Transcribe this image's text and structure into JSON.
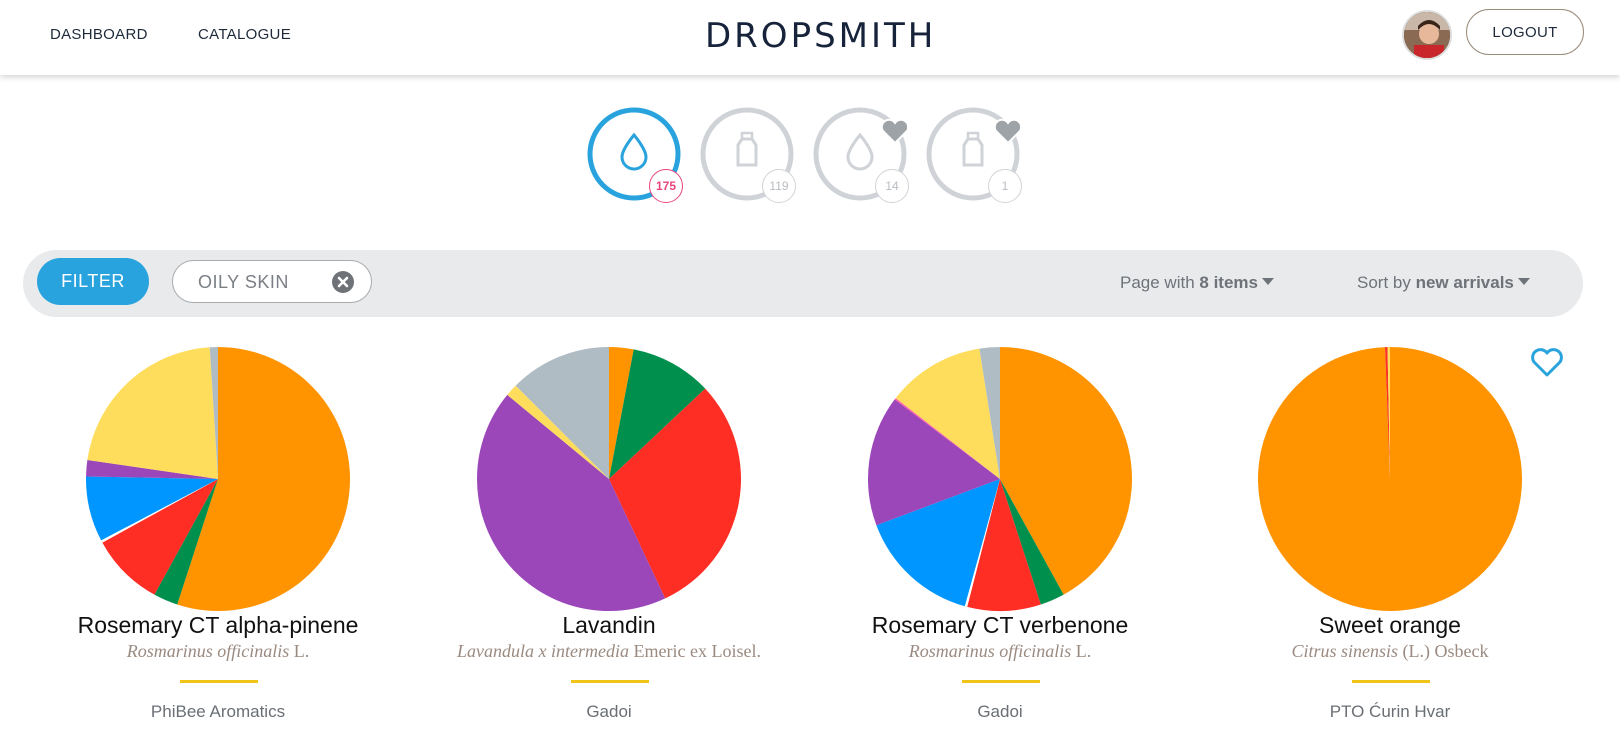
{
  "nav": {
    "dashboard": "DASHBOARD",
    "catalogue": "CATALOGUE"
  },
  "logo": {
    "text": "DROPSMITH"
  },
  "account": {
    "logout": "LOGOUT"
  },
  "categories": [
    {
      "icon": "drop-icon",
      "count": "175",
      "active": true
    },
    {
      "icon": "bottle-icon",
      "count": "119",
      "active": false
    },
    {
      "icon": "drop-heart-icon",
      "count": "14",
      "active": false
    },
    {
      "icon": "bottle-heart-icon",
      "count": "1",
      "active": false
    }
  ],
  "filterbar": {
    "filter_label": "FILTER",
    "chip_label": "OILY SKIN",
    "page_prefix": "Page with ",
    "page_value": "8 items",
    "sort_prefix": "Sort by ",
    "sort_value": "new arrivals"
  },
  "colors": {
    "accent": "#29a3dd",
    "count_active": "#e8457a",
    "orange": "#ff9400",
    "green": "#008f4c",
    "red": "#ff2e25",
    "blue": "#0096ff",
    "purple": "#9b46b9",
    "yellow": "#ffdd5c",
    "gray": "#b0bcc4",
    "divider": "#f0c419"
  },
  "products": [
    {
      "name": "Rosemary CT alpha-pinene",
      "latin_italic": "Rosmarinus officinalis",
      "latin_author": " L.",
      "brand": "PhiBee Aromatics",
      "favorite": false,
      "composition": [
        {
          "component": "orange",
          "value": 55
        },
        {
          "component": "green",
          "value": 3
        },
        {
          "component": "red",
          "value": 9
        },
        {
          "component": "white",
          "value": 0.3
        },
        {
          "component": "blue",
          "value": 8
        },
        {
          "component": "purple",
          "value": 2
        },
        {
          "component": "yellow",
          "value": 21.7
        },
        {
          "component": "gray",
          "value": 1
        }
      ]
    },
    {
      "name": "Lavandin",
      "latin_italic": "Lavandula x intermedia",
      "latin_author": " Emeric ex Loisel.",
      "brand": "Gadoi",
      "favorite": false,
      "composition": [
        {
          "component": "orange",
          "value": 3
        },
        {
          "component": "green",
          "value": 10
        },
        {
          "component": "red",
          "value": 30
        },
        {
          "component": "purple",
          "value": 43
        },
        {
          "component": "yellow",
          "value": 1.5
        },
        {
          "component": "gray",
          "value": 12.5
        }
      ]
    },
    {
      "name": "Rosemary CT verbenone",
      "latin_italic": "Rosmarinus officinalis",
      "latin_author": " L.",
      "brand": "Gadoi",
      "favorite": false,
      "composition": [
        {
          "component": "orange",
          "value": 42
        },
        {
          "component": "green",
          "value": 3
        },
        {
          "component": "red",
          "value": 9
        },
        {
          "component": "white",
          "value": 0.3
        },
        {
          "component": "blue",
          "value": 15
        },
        {
          "component": "purple",
          "value": 16
        },
        {
          "component": "pink",
          "value": 0.2
        },
        {
          "component": "yellow",
          "value": 12
        },
        {
          "component": "gray",
          "value": 2.5
        }
      ]
    },
    {
      "name": "Sweet orange",
      "latin_italic": "Citrus sinensis",
      "latin_author": " (L.) Osbeck",
      "brand": "PTO Ćurin Hvar",
      "favorite": true,
      "composition": [
        {
          "component": "orange",
          "value": 99.4
        },
        {
          "component": "red",
          "value": 0.3
        },
        {
          "component": "yellow",
          "value": 0.3
        }
      ]
    }
  ]
}
